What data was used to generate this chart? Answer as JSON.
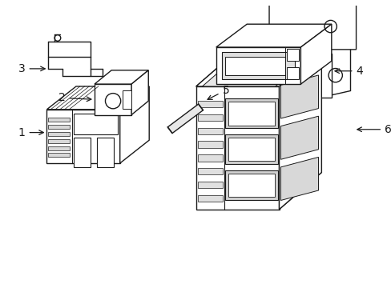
{
  "bg_color": "#ffffff",
  "line_color": "#1a1a1a",
  "lw": 1.0,
  "fig_width": 4.89,
  "fig_height": 3.6,
  "dpi": 100
}
